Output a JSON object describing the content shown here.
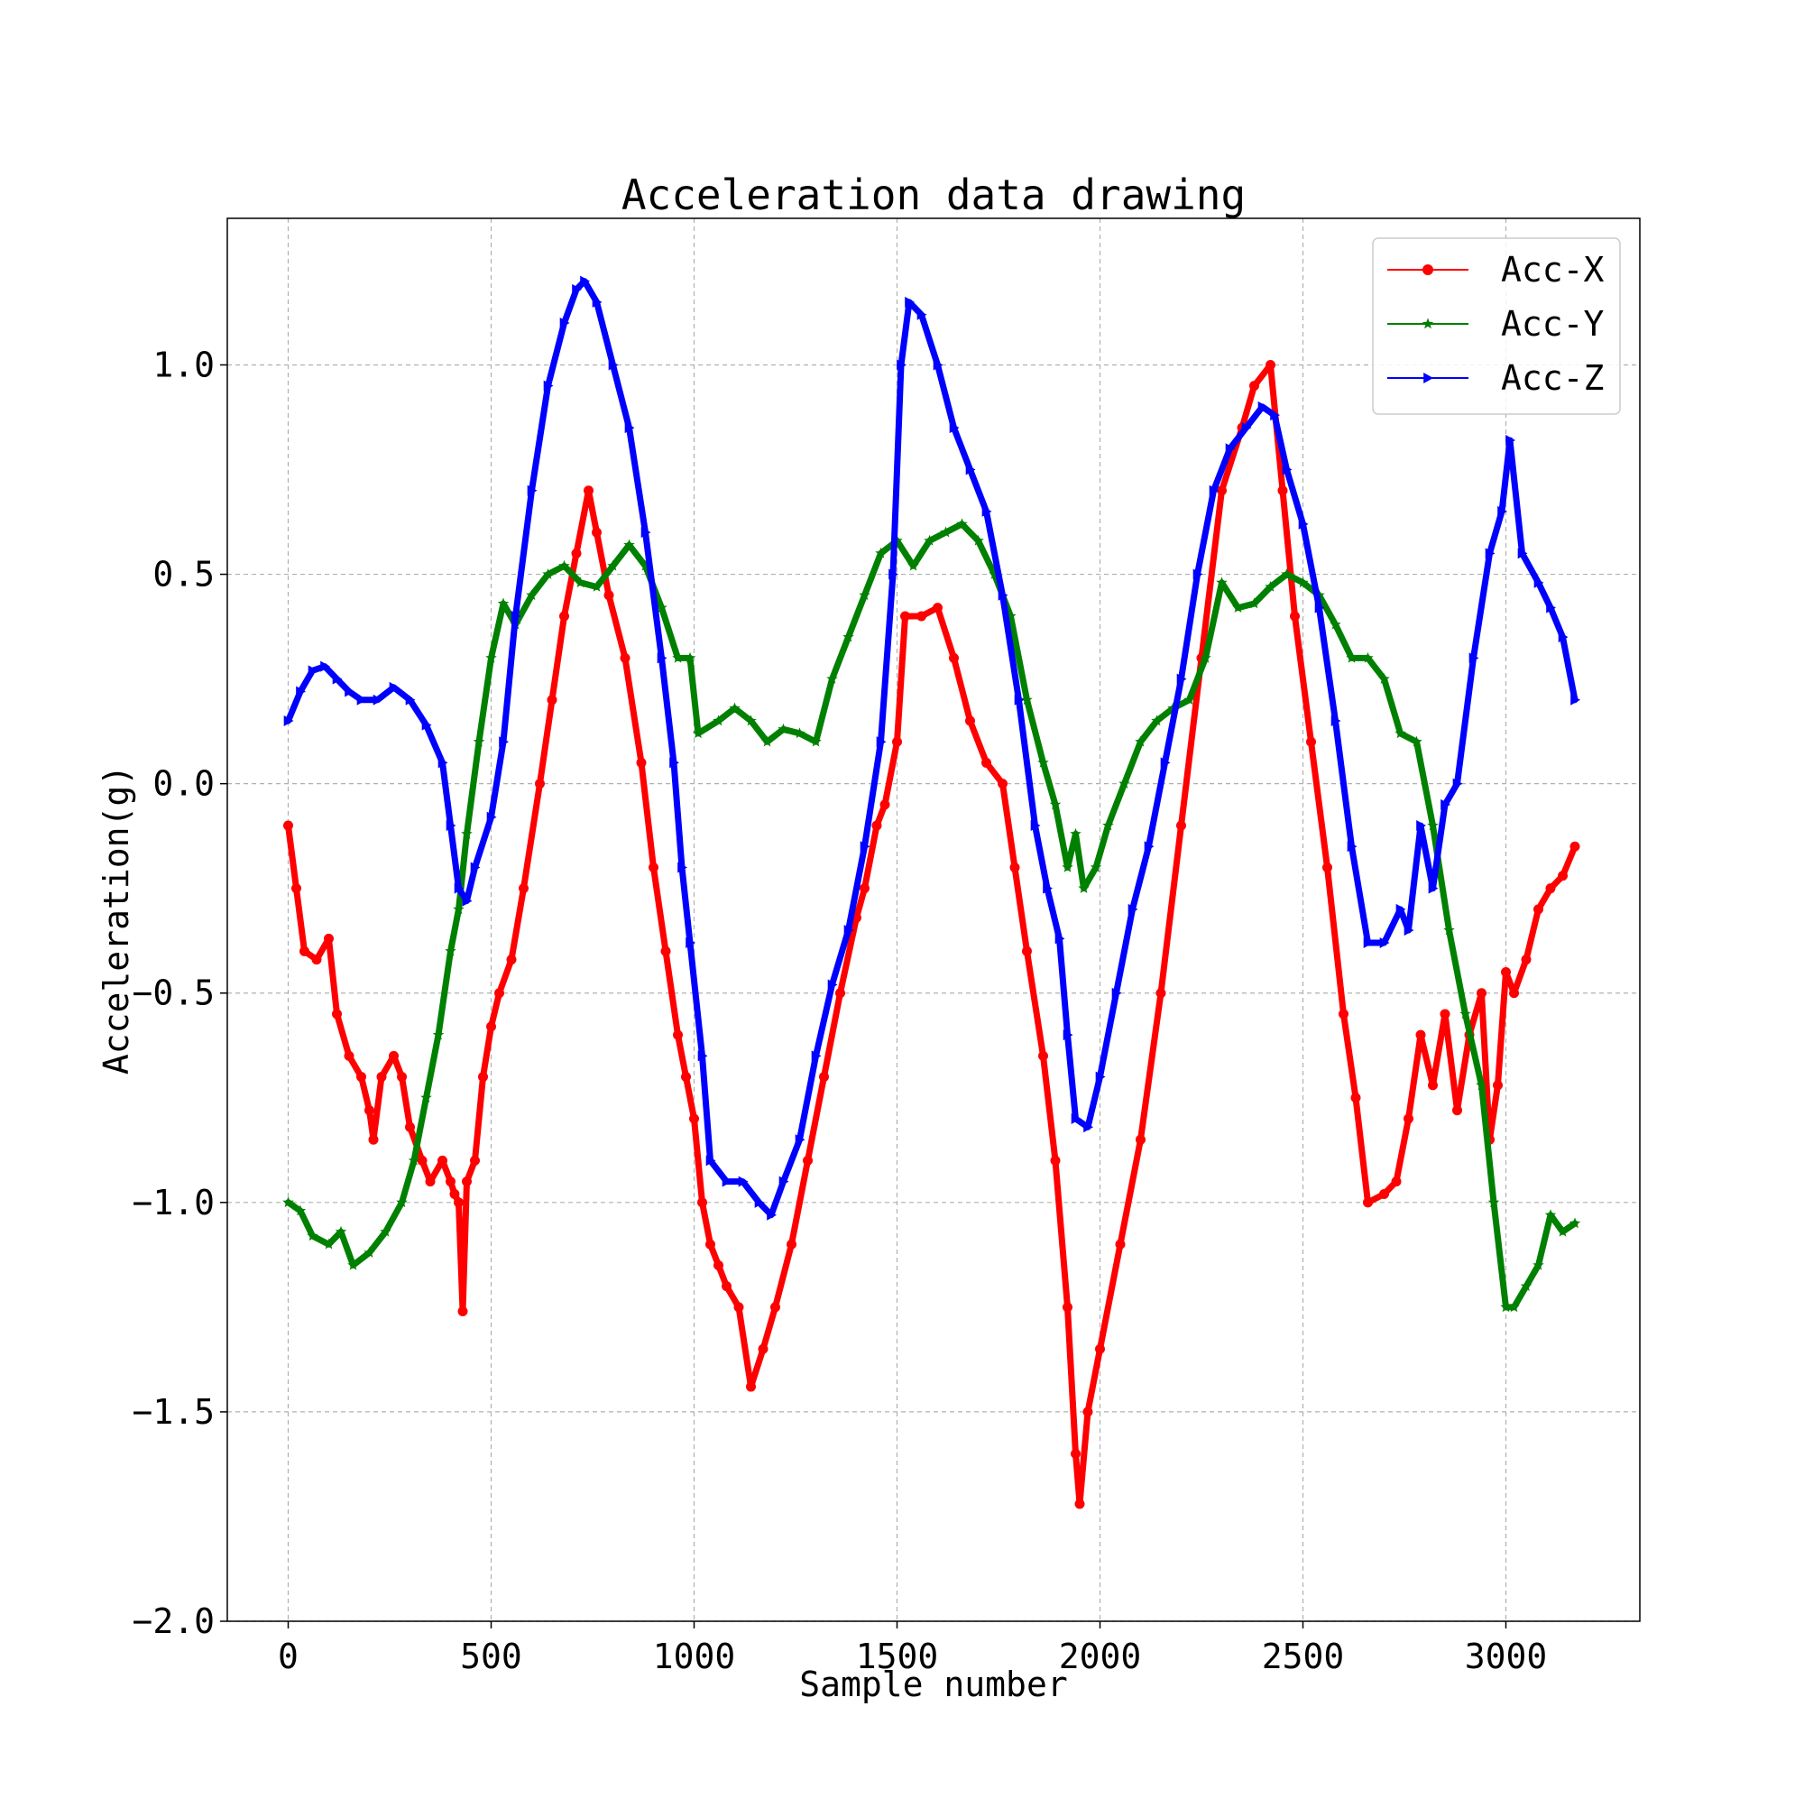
{
  "chart_data": {
    "type": "line",
    "title": "Acceleration data drawing",
    "xlabel": "Sample number",
    "ylabel": "Acceleration(g)",
    "xlim": [
      -150,
      3330
    ],
    "ylim": [
      -2.0,
      1.35
    ],
    "xticks": [
      0,
      500,
      1000,
      1500,
      2000,
      2500,
      3000
    ],
    "yticks": [
      -2.0,
      -1.5,
      -1.0,
      -0.5,
      0.0,
      0.5,
      1.0
    ],
    "xtick_labels": [
      "0",
      "500",
      "1000",
      "1500",
      "2000",
      "2500",
      "3000"
    ],
    "ytick_labels": [
      "−2.0",
      "−1.5",
      "−1.0",
      "−0.5",
      "0.0",
      "0.5",
      "1.0"
    ],
    "grid": true,
    "legend_position": "top-right",
    "series": [
      {
        "name": "Acc-X",
        "color": "#ff0000",
        "marker": "circle",
        "points": [
          [
            0,
            -0.1
          ],
          [
            20,
            -0.25
          ],
          [
            40,
            -0.4
          ],
          [
            70,
            -0.42
          ],
          [
            100,
            -0.37
          ],
          [
            120,
            -0.55
          ],
          [
            150,
            -0.65
          ],
          [
            180,
            -0.7
          ],
          [
            200,
            -0.78
          ],
          [
            210,
            -0.85
          ],
          [
            230,
            -0.7
          ],
          [
            260,
            -0.65
          ],
          [
            280,
            -0.7
          ],
          [
            300,
            -0.82
          ],
          [
            330,
            -0.9
          ],
          [
            350,
            -0.95
          ],
          [
            380,
            -0.9
          ],
          [
            400,
            -0.95
          ],
          [
            410,
            -0.98
          ],
          [
            420,
            -1.0
          ],
          [
            430,
            -1.26
          ],
          [
            440,
            -0.95
          ],
          [
            460,
            -0.9
          ],
          [
            480,
            -0.7
          ],
          [
            500,
            -0.58
          ],
          [
            520,
            -0.5
          ],
          [
            550,
            -0.42
          ],
          [
            580,
            -0.25
          ],
          [
            620,
            0.0
          ],
          [
            650,
            0.2
          ],
          [
            680,
            0.4
          ],
          [
            710,
            0.55
          ],
          [
            740,
            0.7
          ],
          [
            760,
            0.6
          ],
          [
            790,
            0.45
          ],
          [
            830,
            0.3
          ],
          [
            870,
            0.05
          ],
          [
            900,
            -0.2
          ],
          [
            930,
            -0.4
          ],
          [
            960,
            -0.6
          ],
          [
            980,
            -0.7
          ],
          [
            1000,
            -0.8
          ],
          [
            1020,
            -1.0
          ],
          [
            1040,
            -1.1
          ],
          [
            1060,
            -1.15
          ],
          [
            1080,
            -1.2
          ],
          [
            1110,
            -1.25
          ],
          [
            1140,
            -1.44
          ],
          [
            1170,
            -1.35
          ],
          [
            1200,
            -1.25
          ],
          [
            1240,
            -1.1
          ],
          [
            1280,
            -0.9
          ],
          [
            1320,
            -0.7
          ],
          [
            1360,
            -0.5
          ],
          [
            1400,
            -0.32
          ],
          [
            1420,
            -0.25
          ],
          [
            1450,
            -0.1
          ],
          [
            1470,
            -0.05
          ],
          [
            1500,
            0.1
          ],
          [
            1520,
            0.4
          ],
          [
            1560,
            0.4
          ],
          [
            1600,
            0.42
          ],
          [
            1640,
            0.3
          ],
          [
            1680,
            0.15
          ],
          [
            1720,
            0.05
          ],
          [
            1760,
            0.0
          ],
          [
            1790,
            -0.2
          ],
          [
            1820,
            -0.4
          ],
          [
            1860,
            -0.65
          ],
          [
            1890,
            -0.9
          ],
          [
            1920,
            -1.25
          ],
          [
            1940,
            -1.6
          ],
          [
            1950,
            -1.72
          ],
          [
            1970,
            -1.5
          ],
          [
            2000,
            -1.35
          ],
          [
            2050,
            -1.1
          ],
          [
            2100,
            -0.85
          ],
          [
            2150,
            -0.5
          ],
          [
            2200,
            -0.1
          ],
          [
            2250,
            0.3
          ],
          [
            2300,
            0.7
          ],
          [
            2350,
            0.85
          ],
          [
            2380,
            0.95
          ],
          [
            2420,
            1.0
          ],
          [
            2450,
            0.7
          ],
          [
            2480,
            0.4
          ],
          [
            2520,
            0.1
          ],
          [
            2560,
            -0.2
          ],
          [
            2600,
            -0.55
          ],
          [
            2630,
            -0.75
          ],
          [
            2660,
            -1.0
          ],
          [
            2700,
            -0.98
          ],
          [
            2730,
            -0.95
          ],
          [
            2760,
            -0.8
          ],
          [
            2790,
            -0.6
          ],
          [
            2820,
            -0.72
          ],
          [
            2850,
            -0.55
          ],
          [
            2880,
            -0.78
          ],
          [
            2910,
            -0.6
          ],
          [
            2940,
            -0.5
          ],
          [
            2960,
            -0.85
          ],
          [
            2980,
            -0.72
          ],
          [
            3000,
            -0.45
          ],
          [
            3020,
            -0.5
          ],
          [
            3050,
            -0.42
          ],
          [
            3080,
            -0.3
          ],
          [
            3110,
            -0.25
          ],
          [
            3140,
            -0.22
          ],
          [
            3170,
            -0.15
          ]
        ]
      },
      {
        "name": "Acc-Y",
        "color": "#008000",
        "marker": "star",
        "points": [
          [
            0,
            -1.0
          ],
          [
            30,
            -1.02
          ],
          [
            60,
            -1.08
          ],
          [
            100,
            -1.1
          ],
          [
            130,
            -1.07
          ],
          [
            160,
            -1.15
          ],
          [
            200,
            -1.12
          ],
          [
            240,
            -1.07
          ],
          [
            280,
            -1.0
          ],
          [
            310,
            -0.9
          ],
          [
            340,
            -0.75
          ],
          [
            370,
            -0.6
          ],
          [
            400,
            -0.4
          ],
          [
            420,
            -0.3
          ],
          [
            440,
            -0.12
          ],
          [
            470,
            0.1
          ],
          [
            500,
            0.3
          ],
          [
            530,
            0.43
          ],
          [
            560,
            0.38
          ],
          [
            600,
            0.45
          ],
          [
            640,
            0.5
          ],
          [
            680,
            0.52
          ],
          [
            720,
            0.48
          ],
          [
            760,
            0.47
          ],
          [
            800,
            0.52
          ],
          [
            840,
            0.57
          ],
          [
            880,
            0.52
          ],
          [
            920,
            0.42
          ],
          [
            960,
            0.3
          ],
          [
            990,
            0.3
          ],
          [
            1010,
            0.12
          ],
          [
            1060,
            0.15
          ],
          [
            1100,
            0.18
          ],
          [
            1140,
            0.15
          ],
          [
            1180,
            0.1
          ],
          [
            1220,
            0.13
          ],
          [
            1260,
            0.12
          ],
          [
            1300,
            0.1
          ],
          [
            1340,
            0.25
          ],
          [
            1380,
            0.35
          ],
          [
            1420,
            0.45
          ],
          [
            1460,
            0.55
          ],
          [
            1500,
            0.58
          ],
          [
            1540,
            0.52
          ],
          [
            1580,
            0.58
          ],
          [
            1620,
            0.6
          ],
          [
            1660,
            0.62
          ],
          [
            1700,
            0.58
          ],
          [
            1740,
            0.5
          ],
          [
            1780,
            0.4
          ],
          [
            1820,
            0.2
          ],
          [
            1860,
            0.05
          ],
          [
            1890,
            -0.05
          ],
          [
            1920,
            -0.2
          ],
          [
            1940,
            -0.12
          ],
          [
            1960,
            -0.25
          ],
          [
            1990,
            -0.2
          ],
          [
            2020,
            -0.1
          ],
          [
            2060,
            0.0
          ],
          [
            2100,
            0.1
          ],
          [
            2140,
            0.15
          ],
          [
            2180,
            0.18
          ],
          [
            2220,
            0.2
          ],
          [
            2260,
            0.3
          ],
          [
            2300,
            0.48
          ],
          [
            2340,
            0.42
          ],
          [
            2380,
            0.43
          ],
          [
            2420,
            0.47
          ],
          [
            2460,
            0.5
          ],
          [
            2500,
            0.48
          ],
          [
            2540,
            0.45
          ],
          [
            2580,
            0.38
          ],
          [
            2620,
            0.3
          ],
          [
            2660,
            0.3
          ],
          [
            2700,
            0.25
          ],
          [
            2740,
            0.12
          ],
          [
            2780,
            0.1
          ],
          [
            2820,
            -0.1
          ],
          [
            2860,
            -0.35
          ],
          [
            2900,
            -0.55
          ],
          [
            2940,
            -0.72
          ],
          [
            2970,
            -1.0
          ],
          [
            3000,
            -1.25
          ],
          [
            3020,
            -1.25
          ],
          [
            3050,
            -1.2
          ],
          [
            3080,
            -1.15
          ],
          [
            3110,
            -1.03
          ],
          [
            3140,
            -1.07
          ],
          [
            3170,
            -1.05
          ]
        ]
      },
      {
        "name": "Acc-Z",
        "color": "#0000ff",
        "marker": "triangle-right",
        "points": [
          [
            0,
            0.15
          ],
          [
            30,
            0.22
          ],
          [
            60,
            0.27
          ],
          [
            90,
            0.28
          ],
          [
            120,
            0.25
          ],
          [
            150,
            0.22
          ],
          [
            180,
            0.2
          ],
          [
            220,
            0.2
          ],
          [
            260,
            0.23
          ],
          [
            300,
            0.2
          ],
          [
            340,
            0.14
          ],
          [
            380,
            0.05
          ],
          [
            400,
            -0.1
          ],
          [
            420,
            -0.25
          ],
          [
            440,
            -0.28
          ],
          [
            460,
            -0.2
          ],
          [
            500,
            -0.08
          ],
          [
            530,
            0.1
          ],
          [
            560,
            0.4
          ],
          [
            600,
            0.7
          ],
          [
            640,
            0.95
          ],
          [
            680,
            1.1
          ],
          [
            710,
            1.18
          ],
          [
            730,
            1.2
          ],
          [
            760,
            1.15
          ],
          [
            800,
            1.0
          ],
          [
            840,
            0.85
          ],
          [
            880,
            0.6
          ],
          [
            920,
            0.3
          ],
          [
            950,
            0.05
          ],
          [
            970,
            -0.2
          ],
          [
            990,
            -0.38
          ],
          [
            1020,
            -0.65
          ],
          [
            1040,
            -0.9
          ],
          [
            1080,
            -0.95
          ],
          [
            1120,
            -0.95
          ],
          [
            1160,
            -1.0
          ],
          [
            1190,
            -1.03
          ],
          [
            1220,
            -0.95
          ],
          [
            1260,
            -0.85
          ],
          [
            1300,
            -0.65
          ],
          [
            1340,
            -0.48
          ],
          [
            1380,
            -0.35
          ],
          [
            1420,
            -0.15
          ],
          [
            1460,
            0.1
          ],
          [
            1490,
            0.5
          ],
          [
            1510,
            1.0
          ],
          [
            1530,
            1.15
          ],
          [
            1560,
            1.12
          ],
          [
            1600,
            1.0
          ],
          [
            1640,
            0.85
          ],
          [
            1680,
            0.75
          ],
          [
            1720,
            0.65
          ],
          [
            1760,
            0.45
          ],
          [
            1800,
            0.2
          ],
          [
            1840,
            -0.1
          ],
          [
            1870,
            -0.25
          ],
          [
            1900,
            -0.37
          ],
          [
            1920,
            -0.6
          ],
          [
            1940,
            -0.8
          ],
          [
            1970,
            -0.82
          ],
          [
            2000,
            -0.7
          ],
          [
            2040,
            -0.5
          ],
          [
            2080,
            -0.3
          ],
          [
            2120,
            -0.15
          ],
          [
            2160,
            0.05
          ],
          [
            2200,
            0.25
          ],
          [
            2240,
            0.5
          ],
          [
            2280,
            0.7
          ],
          [
            2320,
            0.8
          ],
          [
            2360,
            0.85
          ],
          [
            2400,
            0.9
          ],
          [
            2430,
            0.88
          ],
          [
            2460,
            0.75
          ],
          [
            2500,
            0.62
          ],
          [
            2540,
            0.42
          ],
          [
            2580,
            0.15
          ],
          [
            2620,
            -0.15
          ],
          [
            2660,
            -0.38
          ],
          [
            2700,
            -0.38
          ],
          [
            2740,
            -0.3
          ],
          [
            2760,
            -0.35
          ],
          [
            2790,
            -0.1
          ],
          [
            2820,
            -0.25
          ],
          [
            2850,
            -0.05
          ],
          [
            2880,
            0.0
          ],
          [
            2920,
            0.3
          ],
          [
            2960,
            0.55
          ],
          [
            2990,
            0.65
          ],
          [
            3010,
            0.82
          ],
          [
            3040,
            0.55
          ],
          [
            3080,
            0.48
          ],
          [
            3110,
            0.42
          ],
          [
            3140,
            0.35
          ],
          [
            3170,
            0.2
          ]
        ]
      }
    ]
  }
}
